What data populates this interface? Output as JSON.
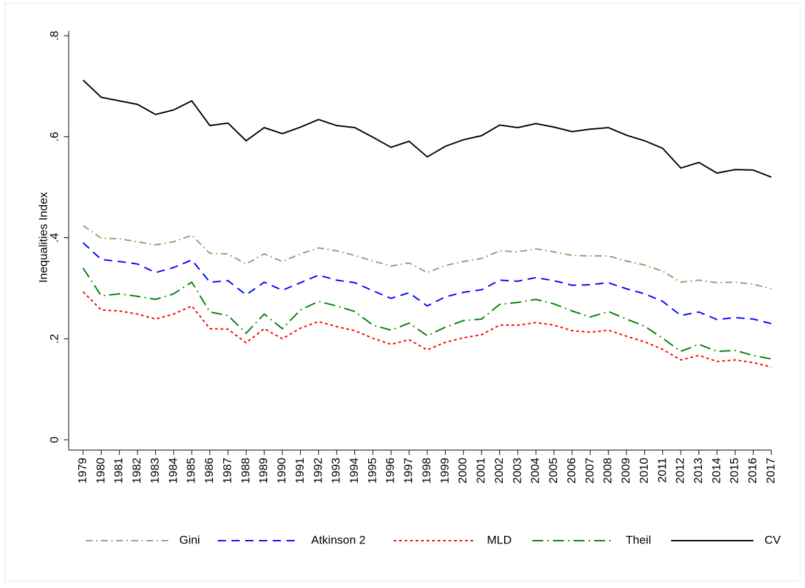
{
  "chart_data": {
    "type": "line",
    "y_label": "Inequalities Index",
    "x": [
      1979,
      1980,
      1981,
      1982,
      1983,
      1984,
      1985,
      1986,
      1987,
      1988,
      1989,
      1990,
      1991,
      1992,
      1993,
      1994,
      1995,
      1996,
      1997,
      1998,
      1999,
      2000,
      2001,
      2002,
      2003,
      2004,
      2005,
      2006,
      2007,
      2008,
      2009,
      2010,
      2011,
      2012,
      2013,
      2014,
      2015,
      2016,
      2017
    ],
    "xlim": [
      1979,
      2017
    ],
    "xticks": [
      1979,
      1980,
      1981,
      1982,
      1983,
      1984,
      1985,
      1986,
      1987,
      1988,
      1989,
      1990,
      1991,
      1992,
      1993,
      1994,
      1995,
      1996,
      1997,
      1998,
      1999,
      2000,
      2001,
      2002,
      2003,
      2004,
      2005,
      2006,
      2007,
      2008,
      2009,
      2010,
      2011,
      2012,
      2013,
      2014,
      2015,
      2016,
      2017
    ],
    "ylim": [
      0,
      0.8
    ],
    "yticks": [
      0,
      {
        "value": 0.2,
        "label": ".2"
      },
      {
        "value": 0.4,
        "label": ".4"
      },
      {
        "value": 0.6,
        "label": ".6"
      },
      {
        "value": 0.8,
        "label": ".8"
      }
    ],
    "grid": false,
    "legend": "bottom",
    "series": [
      {
        "name": "Gini",
        "color": "#a8946a",
        "style": "dash-dot",
        "values": [
          0.424,
          0.399,
          0.398,
          0.392,
          0.386,
          0.392,
          0.405,
          0.369,
          0.368,
          0.348,
          0.368,
          0.353,
          0.368,
          0.38,
          0.374,
          0.365,
          0.354,
          0.344,
          0.35,
          0.331,
          0.345,
          0.353,
          0.359,
          0.374,
          0.372,
          0.378,
          0.372,
          0.365,
          0.364,
          0.364,
          0.354,
          0.346,
          0.334,
          0.312,
          0.316,
          0.311,
          0.312,
          0.308,
          0.299
        ]
      },
      {
        "name": "Atkinson 2",
        "color": "#0000ff",
        "style": "dash",
        "values": [
          0.39,
          0.357,
          0.353,
          0.348,
          0.331,
          0.341,
          0.356,
          0.312,
          0.315,
          0.287,
          0.312,
          0.296,
          0.311,
          0.326,
          0.316,
          0.311,
          0.295,
          0.28,
          0.291,
          0.265,
          0.283,
          0.292,
          0.297,
          0.316,
          0.314,
          0.321,
          0.315,
          0.306,
          0.307,
          0.311,
          0.299,
          0.289,
          0.274,
          0.246,
          0.253,
          0.238,
          0.242,
          0.239,
          0.23
        ]
      },
      {
        "name": "MLD",
        "color": "#ff0000",
        "style": "dot",
        "values": [
          0.293,
          0.257,
          0.255,
          0.249,
          0.239,
          0.249,
          0.265,
          0.22,
          0.219,
          0.192,
          0.22,
          0.2,
          0.221,
          0.234,
          0.224,
          0.216,
          0.201,
          0.189,
          0.198,
          0.178,
          0.193,
          0.202,
          0.208,
          0.227,
          0.227,
          0.232,
          0.227,
          0.216,
          0.213,
          0.217,
          0.205,
          0.194,
          0.179,
          0.158,
          0.167,
          0.155,
          0.158,
          0.153,
          0.144
        ]
      },
      {
        "name": "Theil",
        "color": "#008000",
        "style": "long-dash-dot",
        "values": [
          0.34,
          0.285,
          0.289,
          0.284,
          0.278,
          0.289,
          0.312,
          0.253,
          0.246,
          0.211,
          0.249,
          0.22,
          0.257,
          0.274,
          0.265,
          0.254,
          0.227,
          0.217,
          0.231,
          0.206,
          0.223,
          0.236,
          0.239,
          0.268,
          0.272,
          0.278,
          0.269,
          0.255,
          0.243,
          0.254,
          0.239,
          0.225,
          0.201,
          0.175,
          0.189,
          0.175,
          0.177,
          0.167,
          0.16
        ]
      },
      {
        "name": "CV",
        "color": "#000000",
        "style": "solid",
        "values": [
          0.712,
          0.678,
          0.671,
          0.664,
          0.644,
          0.653,
          0.671,
          0.622,
          0.627,
          0.592,
          0.618,
          0.606,
          0.619,
          0.634,
          0.622,
          0.618,
          0.599,
          0.579,
          0.591,
          0.56,
          0.581,
          0.594,
          0.602,
          0.623,
          0.618,
          0.626,
          0.619,
          0.61,
          0.615,
          0.618,
          0.603,
          0.592,
          0.577,
          0.538,
          0.549,
          0.528,
          0.535,
          0.534,
          0.52
        ]
      }
    ]
  }
}
